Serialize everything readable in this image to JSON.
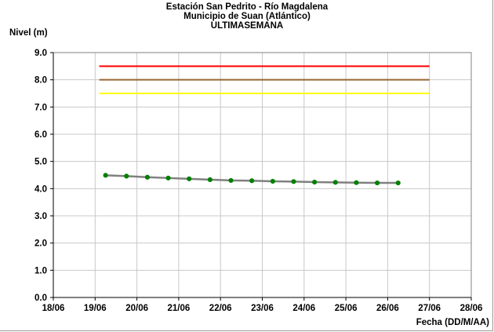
{
  "chart_data": {
    "type": "line",
    "title": [
      "Estación San Pedrito - Río Magdalena",
      "Municipio de Suan (Atlántico)",
      "ULTIMASEMANA"
    ],
    "ylabel": "Nivel (m)",
    "xlabel": "Fecha (DD/M/AA)",
    "ylim": [
      0,
      9
    ],
    "yticks": [
      "0.0",
      "1.0",
      "2.0",
      "3.0",
      "4.0",
      "5.0",
      "6.0",
      "7.0",
      "8.0",
      "9.0"
    ],
    "xlim": [
      0,
      10
    ],
    "xticks": [
      "18/06",
      "19/06",
      "20/06",
      "21/06",
      "22/06",
      "23/06",
      "24/06",
      "25/06",
      "26/06",
      "27/06",
      "28/06"
    ],
    "grid": true,
    "series": [
      {
        "kind": "hline",
        "color": "#ff0000",
        "y": 8.5,
        "x": [
          1.1,
          9.0
        ]
      },
      {
        "kind": "hline",
        "color": "#996633",
        "y": 8.0,
        "x": [
          1.1,
          9.0
        ]
      },
      {
        "kind": "hline",
        "color": "#ffff00",
        "y": 7.5,
        "x": [
          1.1,
          9.0
        ]
      },
      {
        "kind": "points",
        "color": "#808080",
        "marker_color": "#008000",
        "x": [
          1.25,
          1.75,
          2.25,
          2.75,
          3.25,
          3.75,
          4.25,
          4.75,
          5.25,
          5.75,
          6.25,
          6.75,
          7.25,
          7.75,
          8.25
        ],
        "y": [
          4.49,
          4.46,
          4.42,
          4.39,
          4.36,
          4.33,
          4.3,
          4.29,
          4.27,
          4.26,
          4.24,
          4.23,
          4.22,
          4.21,
          4.21
        ]
      }
    ]
  }
}
